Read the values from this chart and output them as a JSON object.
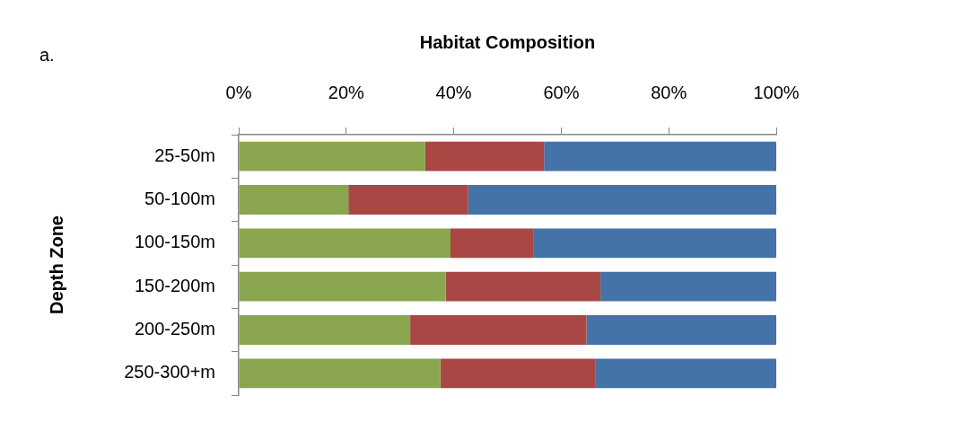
{
  "chart_data": {
    "type": "bar",
    "orientation": "horizontal",
    "stacked": true,
    "title": "Habitat Composition",
    "ylabel": "Depth Zone",
    "annotations": [
      "a."
    ],
    "categories": [
      "25-50m",
      "50-100m",
      "100-150m",
      "150-200m",
      "200-250m",
      "250-300+m"
    ],
    "series": [
      {
        "color": "#8aa64e",
        "values": [
          34.7,
          20.4,
          39.4,
          38.5,
          31.9,
          37.5
        ]
      },
      {
        "color": "#a94745",
        "values": [
          22.1,
          22.3,
          15.5,
          28.8,
          32.8,
          28.8
        ]
      },
      {
        "color": "#4473a8",
        "values": [
          43.2,
          57.3,
          45.1,
          32.7,
          35.3,
          33.7
        ]
      }
    ],
    "xlim": [
      0,
      100
    ],
    "xticks": [
      {
        "value": 0,
        "label": "0%"
      },
      {
        "value": 20,
        "label": "20%"
      },
      {
        "value": 40,
        "label": "40%"
      },
      {
        "value": 60,
        "label": "60%"
      },
      {
        "value": 80,
        "label": "80%"
      },
      {
        "value": 100,
        "label": "100%"
      }
    ],
    "grid": false,
    "legend": false
  }
}
